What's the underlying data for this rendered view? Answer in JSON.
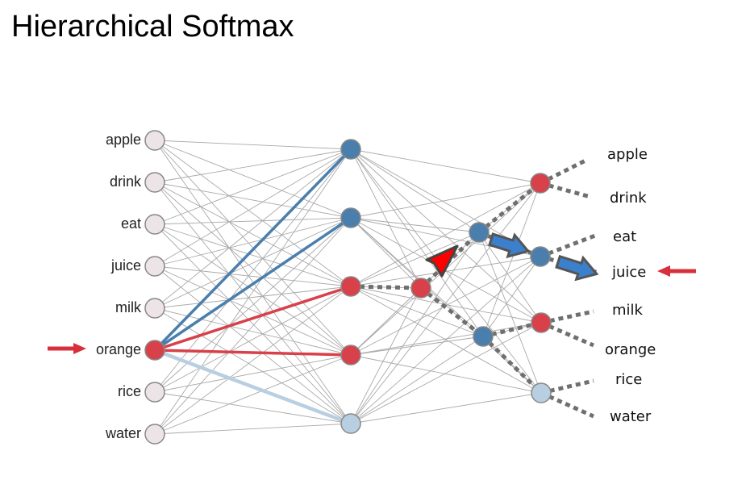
{
  "title": "Hierarchical Softmax",
  "input_words": [
    "apple",
    "drink",
    "eat",
    "juice",
    "milk",
    "orange",
    "rice",
    "water"
  ],
  "output_words": [
    "apple",
    "drink",
    "eat",
    "juice",
    "milk",
    "orange",
    "rice",
    "water"
  ],
  "input_selected": "orange",
  "output_target": "juice",
  "colors": {
    "red": "#d8404a",
    "blue": "#4a7fad",
    "lightblue": "#b8cfe2",
    "input_node": "#ede4e8",
    "edge": "#a9a9a9",
    "dotted": "#6f6f6f",
    "arrow_red": "#d8303a",
    "red_arrow_head": "#ff0000",
    "blue_arrow_head": "#3b80cc"
  }
}
